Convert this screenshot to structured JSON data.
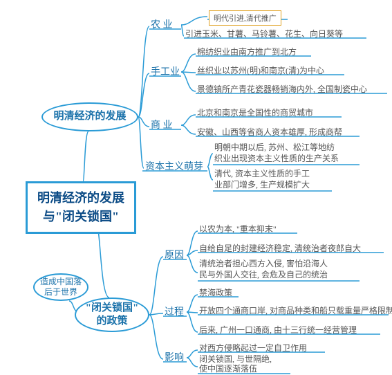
{
  "colors": {
    "stroke": "#2a9bd6",
    "title_text": "#0a4a85",
    "branch_text": "#1b72aa",
    "leaf_text": "#555555",
    "note_border": "#e0a020"
  },
  "sizes": {
    "title_fontsize": 18,
    "oval_fontsize": 15,
    "ovalsmall_fontsize": 12,
    "branch_fontsize": 14,
    "leaf_fontsize": 12,
    "note_fontsize": 11
  },
  "title": {
    "line1": "明清经济的发展",
    "line2": "与\"闭关锁国\""
  },
  "upper_oval": "明清经济的发展",
  "lower_oval": "\"闭关锁国\"\n的政策",
  "side_oval": "造成中国落\n后于世界",
  "note": "明代引进,清代推广",
  "branches": {
    "b1": "农 业",
    "b2": "手工业",
    "b3": "商 业",
    "b4": "资本主义萌芽",
    "b5": "原因",
    "b6": "过程",
    "b7": "影响"
  },
  "leaves": {
    "l1": "引进玉米、甘薯、马铃薯、花生、向日葵等",
    "l2": "棉纺织业由南方推广到北方",
    "l3": "丝织业以苏州(明)和南京(清)为中心",
    "l4": "景德镇所产青花瓷器畅销海内外, 全国制瓷中心",
    "l5": "北京和南京是全国性的商贸城市",
    "l6": "安徽、山西等省商人资本雄厚, 形成商帮",
    "l7": "明朝中期以后, 苏州、松江等地纺\n织业出现资本主义性质的生产关系",
    "l8": "清代, 资本主义性质的手工\n业部门增多, 生产规模扩大",
    "l9": "以农为本, \"重本抑末\"",
    "l10": "自给自足的封建经济稳定, 清统治者夜郎自大",
    "l11": "清统治者担心西方入侵, 害怕沿海人\n民与外国人交往, 会危及自己的统治",
    "l12": "禁海政策",
    "l13": "开放四个通商口岸, 对商品种类和船只载重量严格限制",
    "l14": "后来, 广州一口通商, 由十三行统一经营管理",
    "l15": "对西方侵略起过一定自卫作用",
    "l16": "闭关锁国, 与世隔绝,\n使中国逐渐落伍"
  }
}
